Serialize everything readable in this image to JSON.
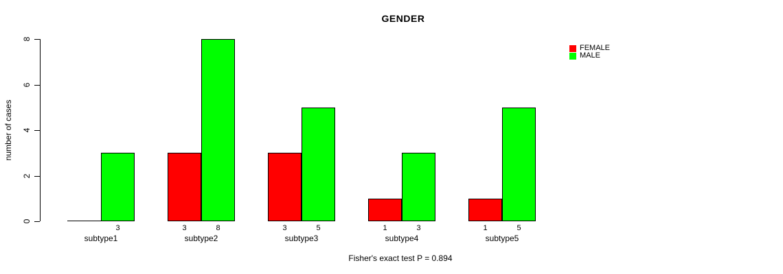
{
  "title": "GENDER",
  "ylabel": "number of cases",
  "annotation": "Fisher's exact test P = 0.894",
  "colors": {
    "female": "#ff0000",
    "male": "#00ff00",
    "axis": "#000000",
    "background": "#ffffff"
  },
  "chart_data": {
    "type": "bar",
    "title": "GENDER",
    "categories": [
      "subtype1",
      "subtype2",
      "subtype3",
      "subtype4",
      "subtype5"
    ],
    "series": [
      {
        "name": "FEMALE",
        "color": "#ff0000",
        "values": [
          0,
          3,
          3,
          1,
          1
        ]
      },
      {
        "name": "MALE",
        "color": "#00ff00",
        "values": [
          3,
          8,
          5,
          3,
          5
        ]
      }
    ],
    "bar_value_labels": [
      {
        "female": null,
        "male": "3"
      },
      {
        "female": "3",
        "male": "8"
      },
      {
        "female": "3",
        "male": "5"
      },
      {
        "female": "1",
        "male": "3"
      },
      {
        "female": "1",
        "male": "5"
      }
    ],
    "xlabel": "",
    "ylabel": "number of cases",
    "ylim": [
      0,
      8
    ],
    "yticks": [
      0,
      2,
      4,
      6,
      8
    ],
    "grid": false,
    "legend_position": "top-right",
    "legend_entries": [
      "FEMALE",
      "MALE"
    ],
    "annotation": "Fisher's exact test P = 0.894"
  }
}
